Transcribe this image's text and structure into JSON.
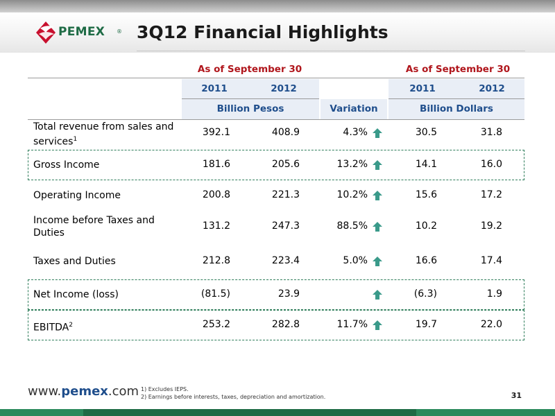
{
  "header": {
    "title": "3Q12 Financial Highlights",
    "logo_text": "PEMEX",
    "logo_mark": "®"
  },
  "table": {
    "group_left": "As of September 30",
    "group_right": "As of September 30",
    "years_left": [
      "2011",
      "2012"
    ],
    "years_right": [
      "2011",
      "2012"
    ],
    "unit_left": "Billion Pesos",
    "variation_label": "Variation",
    "unit_right": "Billion Dollars",
    "rows": [
      {
        "label": "Total revenue from sales and services",
        "sup": "1",
        "p2011": "392.1",
        "p2012": "408.9",
        "variation": "4.3%",
        "d2011": "30.5",
        "d2012": "31.8",
        "arrow": "up"
      },
      {
        "label": "Gross Income",
        "sup": "",
        "p2011": "181.6",
        "p2012": "205.6",
        "variation": "13.2%",
        "d2011": "14.1",
        "d2012": "16.0",
        "arrow": "up"
      },
      {
        "label": "Operating Income",
        "sup": "",
        "p2011": "200.8",
        "p2012": "221.3",
        "variation": "10.2%",
        "d2011": "15.6",
        "d2012": "17.2",
        "arrow": "up"
      },
      {
        "label": "Income before Taxes and Duties",
        "sup": "",
        "p2011": "131.2",
        "p2012": "247.3",
        "variation": "88.5%",
        "d2011": "10.2",
        "d2012": "19.2",
        "arrow": "up"
      },
      {
        "label": "Taxes and Duties",
        "sup": "",
        "p2011": "212.8",
        "p2012": "223.4",
        "variation": "5.0%",
        "d2011": "16.6",
        "d2012": "17.4",
        "arrow": "up"
      },
      {
        "label": "Net Income (loss)",
        "sup": "",
        "p2011": "(81.5)",
        "p2012": "23.9",
        "variation": "",
        "d2011": "(6.3)",
        "d2012": "1.9",
        "arrow": "up"
      },
      {
        "label": "EBITDA",
        "sup": "2",
        "p2011": "253.2",
        "p2012": "282.8",
        "variation": "11.7%",
        "d2011": "19.7",
        "d2012": "22.0",
        "arrow": "up"
      }
    ]
  },
  "footer": {
    "url_prefix": "www.",
    "url_brand": "pemex",
    "url_suffix": ".com",
    "notes": [
      "1)  Excludes IEPS.",
      "2)   Earnings before interests, taxes, depreciation and amortization."
    ],
    "page": "31"
  },
  "colors": {
    "brand_green": "#1e6b45",
    "header_red": "#b0161c",
    "header_blue": "#1f4e8c",
    "arrow": "#3a9a8a"
  }
}
